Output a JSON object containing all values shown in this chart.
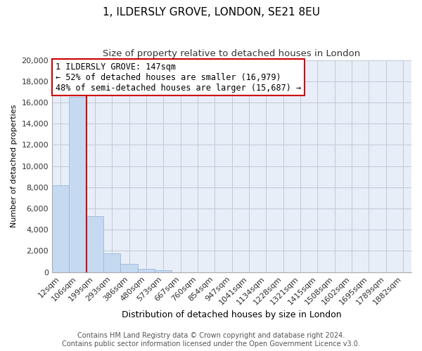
{
  "title": "1, ILDERSLY GROVE, LONDON, SE21 8EU",
  "subtitle": "Size of property relative to detached houses in London",
  "xlabel": "Distribution of detached houses by size in London",
  "ylabel": "Number of detached properties",
  "categories": [
    "12sqm",
    "106sqm",
    "199sqm",
    "293sqm",
    "386sqm",
    "480sqm",
    "573sqm",
    "667sqm",
    "760sqm",
    "854sqm",
    "947sqm",
    "1041sqm",
    "1134sqm",
    "1228sqm",
    "1321sqm",
    "1415sqm",
    "1508sqm",
    "1602sqm",
    "1695sqm",
    "1789sqm",
    "1882sqm"
  ],
  "values": [
    8200,
    16500,
    5300,
    1750,
    750,
    280,
    200,
    0,
    0,
    0,
    0,
    0,
    0,
    0,
    0,
    0,
    0,
    0,
    0,
    0,
    0
  ],
  "bar_color": "#c5d9f1",
  "bar_edge_color": "#9ab8d8",
  "vline_color": "#cc0000",
  "annotation_title": "1 ILDERSLY GROVE: 147sqm",
  "annotation_line1": "← 52% of detached houses are smaller (16,979)",
  "annotation_line2": "48% of semi-detached houses are larger (15,687) →",
  "annotation_box_color": "#ffffff",
  "annotation_box_edge_color": "#cc0000",
  "plot_bg_color": "#e8eef7",
  "ylim": [
    0,
    20000
  ],
  "yticks": [
    0,
    2000,
    4000,
    6000,
    8000,
    10000,
    12000,
    14000,
    16000,
    18000,
    20000
  ],
  "footer_line1": "Contains HM Land Registry data © Crown copyright and database right 2024.",
  "footer_line2": "Contains public sector information licensed under the Open Government Licence v3.0.",
  "title_fontsize": 11,
  "subtitle_fontsize": 9.5,
  "xlabel_fontsize": 9,
  "ylabel_fontsize": 8,
  "tick_fontsize": 8,
  "annotation_fontsize": 8.5,
  "footer_fontsize": 7
}
